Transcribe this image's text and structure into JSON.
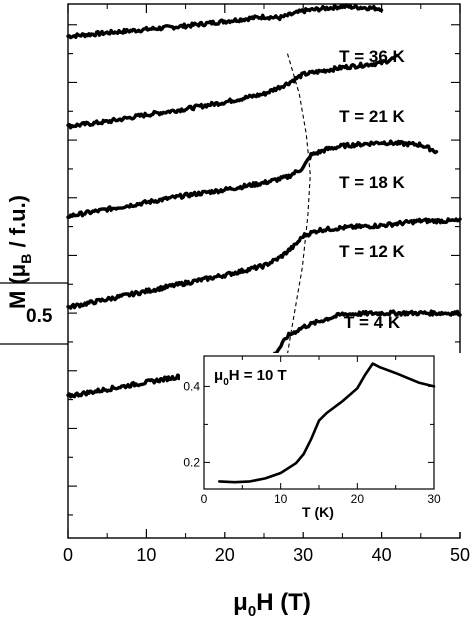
{
  "chart_data": [
    {
      "type": "line",
      "title": "",
      "xlabel_main": "μ",
      "xlabel_sub": "0",
      "xlabel_rest": "H (T)",
      "ylabel_main": "M (μ",
      "ylabel_sub": "B",
      "ylabel_rest": " / f.u.)",
      "xlim": [
        0,
        50
      ],
      "xticks": [
        0,
        10,
        20,
        30,
        40,
        50
      ],
      "scale_bar_label": "0.5",
      "series": [
        {
          "name": "T = 36 K",
          "x": [
            0,
            5,
            10,
            15,
            20,
            25,
            27,
            30,
            35,
            40
          ],
          "y": [
            4.4,
            4.43,
            4.46,
            4.49,
            4.53,
            4.57,
            4.56,
            4.62,
            4.66,
            4.64
          ]
        },
        {
          "name": "T = 21 K",
          "x": [
            0,
            5,
            10,
            15,
            20,
            25,
            28,
            30,
            35,
            40,
            42
          ],
          "y": [
            3.62,
            3.66,
            3.72,
            3.77,
            3.83,
            3.9,
            3.99,
            4.07,
            4.13,
            4.17,
            4.22
          ]
        },
        {
          "name": "T = 18 K",
          "x": [
            0,
            5,
            10,
            15,
            20,
            25,
            28,
            30,
            31,
            33,
            35,
            40,
            45,
            47
          ],
          "y": [
            2.84,
            2.9,
            2.96,
            3.02,
            3.07,
            3.13,
            3.18,
            3.26,
            3.37,
            3.42,
            3.45,
            3.48,
            3.46,
            3.4
          ]
        },
        {
          "name": "T = 12 K",
          "x": [
            0,
            5,
            10,
            15,
            20,
            25,
            27,
            29,
            30,
            32,
            35,
            40,
            45,
            50
          ],
          "y": [
            2.05,
            2.12,
            2.19,
            2.26,
            2.33,
            2.41,
            2.48,
            2.59,
            2.67,
            2.72,
            2.74,
            2.76,
            2.8,
            2.8
          ]
        },
        {
          "name": "T = 4 K",
          "x": [
            0,
            5,
            10,
            15,
            20,
            25,
            26,
            27,
            28,
            30,
            33,
            35,
            40,
            45,
            50
          ],
          "y": [
            1.28,
            1.34,
            1.4,
            1.46,
            1.51,
            1.58,
            1.61,
            1.7,
            1.8,
            1.88,
            1.95,
            1.99,
            2.0,
            2.0,
            2.0
          ]
        }
      ],
      "dashed_line": {
        "x": [
          28.0,
          29.5,
          30.4,
          30.9,
          30.6,
          29.9,
          28.5,
          27.4
        ],
        "y": [
          4.25,
          3.9,
          3.55,
          3.2,
          2.85,
          2.4,
          1.85,
          1.4
        ]
      }
    },
    {
      "type": "line",
      "title": "",
      "annotation_main": "μ",
      "annotation_sub": "0",
      "annotation_rest": "H = 10 T",
      "xlabel": "T (K)",
      "xlim": [
        0,
        30
      ],
      "ylim": [
        0.13,
        0.48
      ],
      "xticks": [
        0,
        10,
        20,
        30
      ],
      "yticks": [
        0.2,
        0.4
      ],
      "x": [
        2,
        4,
        6,
        8,
        10,
        12,
        13,
        14,
        15,
        16,
        18,
        20,
        21,
        22,
        23,
        25,
        28,
        30
      ],
      "y": [
        0.15,
        0.148,
        0.15,
        0.158,
        0.172,
        0.198,
        0.222,
        0.262,
        0.31,
        0.33,
        0.36,
        0.395,
        0.43,
        0.46,
        0.45,
        0.435,
        0.41,
        0.4
      ]
    }
  ],
  "curve_labels": [
    "T = 36 K",
    "T = 21 K",
    "T = 18 K",
    "T = 12 K",
    "T = 4 K"
  ]
}
